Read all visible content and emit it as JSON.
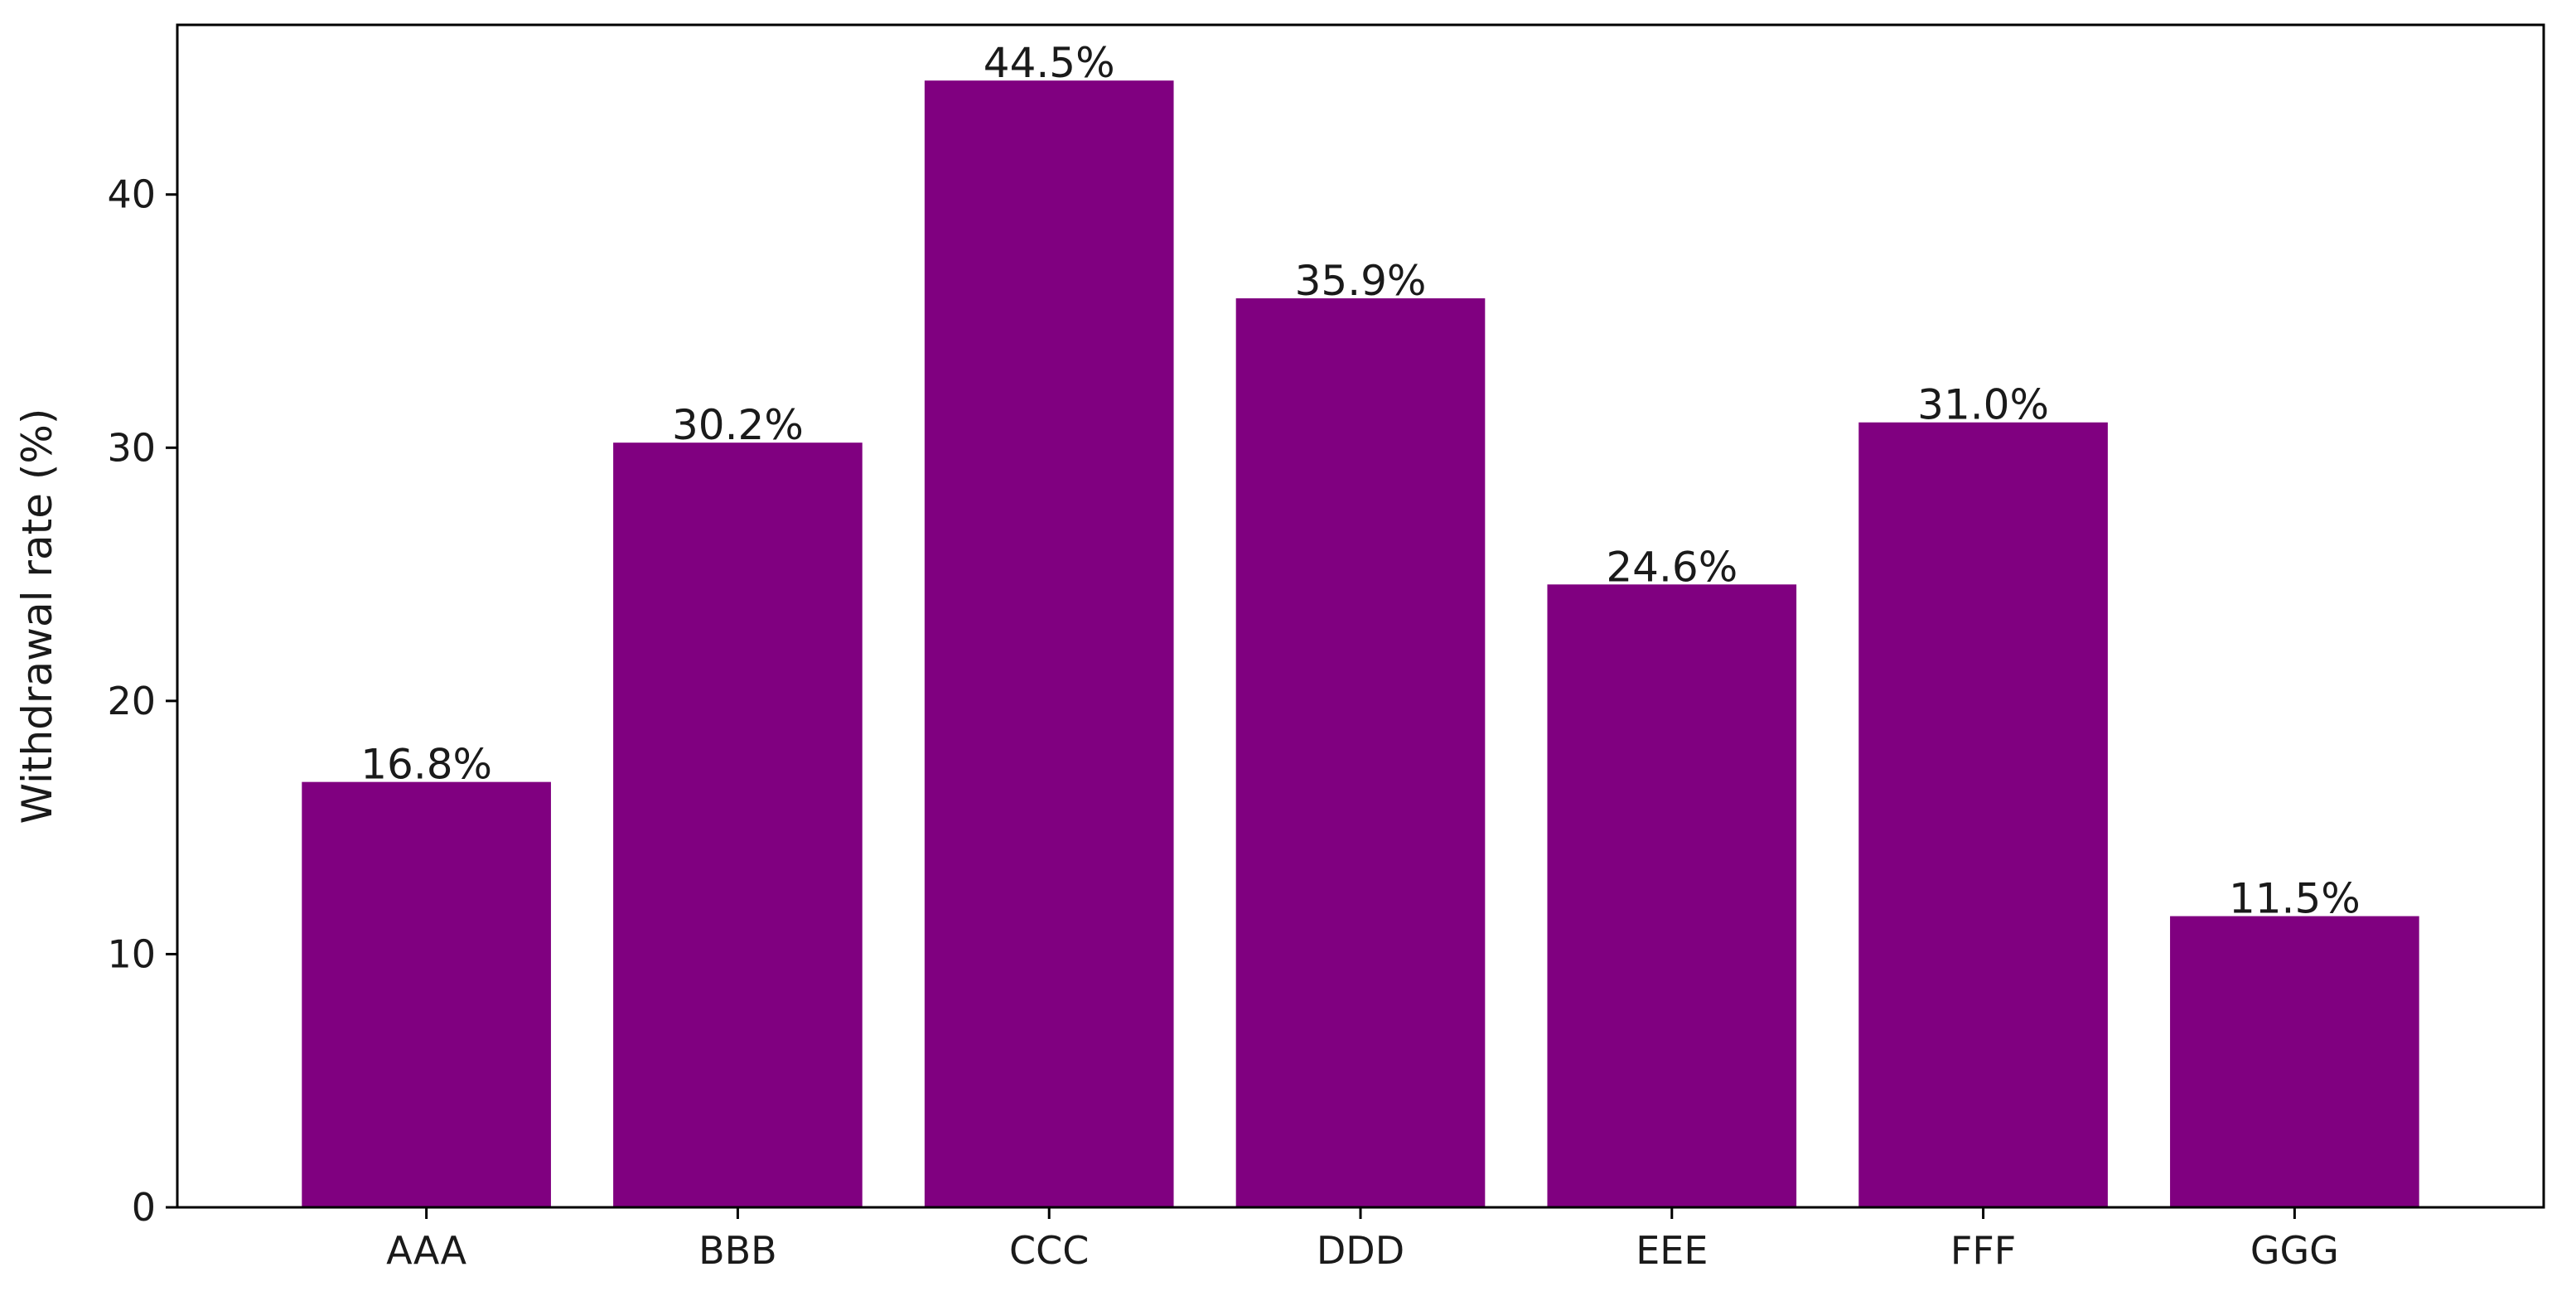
{
  "chart_data": {
    "type": "bar",
    "categories": [
      "AAA",
      "BBB",
      "CCC",
      "DDD",
      "EEE",
      "FFF",
      "GGG"
    ],
    "values": [
      16.8,
      30.2,
      44.5,
      35.9,
      24.6,
      31.0,
      11.5
    ],
    "data_labels": [
      "16.8%",
      "30.2%",
      "44.5%",
      "35.9%",
      "24.6%",
      "31.0%",
      "11.5%"
    ],
    "title": "",
    "xlabel": "",
    "ylabel": "Withdrawal rate (%)",
    "ylim": [
      0,
      46.7
    ],
    "yticks": [
      0,
      10,
      20,
      30,
      40
    ],
    "ytick_labels": [
      "0",
      "10",
      "20",
      "30",
      "40"
    ],
    "bar_color": "#800080",
    "grid": false,
    "legend": "none"
  }
}
